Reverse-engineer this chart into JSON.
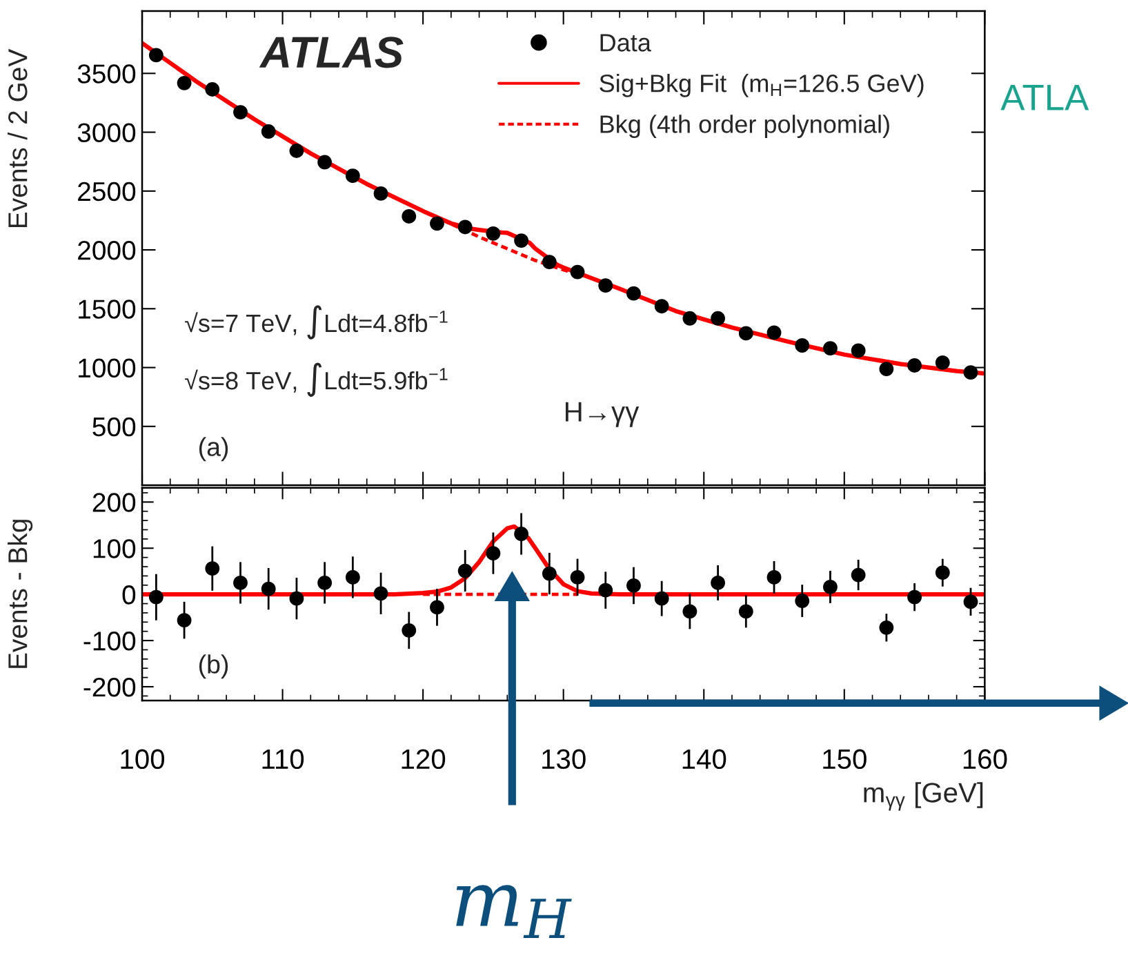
{
  "chart_data": [
    {
      "type": "scatter",
      "ylabel": "Events / 2 GeV",
      "xlim": [
        100,
        160
      ],
      "xticks": [
        100,
        110,
        120,
        130,
        140,
        150,
        160
      ],
      "ylim": [
        0,
        4030
      ],
      "yticks": [
        500,
        1000,
        1500,
        2000,
        2500,
        3000,
        3500
      ],
      "tick_labels": "y",
      "legend": "top right",
      "grid": false,
      "x": [
        101,
        103,
        105,
        107,
        109,
        111,
        113,
        115,
        117,
        119,
        121,
        123,
        125,
        127,
        129,
        131,
        133,
        135,
        137,
        139,
        141,
        143,
        145,
        147,
        149,
        151,
        153,
        155,
        157,
        159
      ],
      "series": [
        {
          "name": "Data",
          "type": "scatter",
          "marker": "circle",
          "color": "#000000",
          "values": [
            3655,
            3418,
            3364,
            3170,
            3006,
            2842,
            2745,
            2630,
            2479,
            2285,
            2224,
            2194,
            2139,
            2079,
            1897,
            1812,
            1697,
            1630,
            1521,
            1418,
            1418,
            1291,
            1297,
            1188,
            1164,
            1145,
            988,
            1018,
            1042,
            958
          ]
        },
        {
          "name": "Sig+Bkg Fit  (m$_{H}$=126.5 GeV)",
          "type": "line",
          "line_style": "solid",
          "marker": "none",
          "color": "#ff0000",
          "x": [
            100,
            104,
            108,
            112,
            116,
            120,
            122,
            123.5,
            124,
            125.6,
            126,
            127.6,
            128,
            129.6,
            130,
            134,
            138,
            142,
            146,
            150,
            154,
            158,
            160
          ],
          "values": [
            3757,
            3420,
            3110,
            2820,
            2560,
            2330,
            2225,
            2178,
            2170,
            2148,
            2145,
            2060,
            2010,
            1870,
            1850,
            1670,
            1480,
            1340,
            1220,
            1110,
            1030,
            970,
            950
          ]
        },
        {
          "name": "Bkg (4th order polynomial)",
          "type": "line",
          "line_style": "dashed",
          "marker": "none",
          "color": "#ff0000",
          "x": [
            120,
            122,
            124,
            126,
            128,
            130,
            130.4
          ],
          "values": [
            2330,
            2220,
            2110,
            2010,
            1910,
            1830,
            1815
          ]
        }
      ],
      "annotations": [
        "ATLAS",
        "√s=7 TeV, ∫Ldt=4.8fb$^{−1}$",
        "√s=8 TeV, ∫Ldt=5.9fb$^{−1}$",
        "H→γγ",
        "(a)"
      ]
    },
    {
      "type": "scatter",
      "ylabel": "Events - Bkg",
      "xlabel": "m$_{γγ}$ [GeV]",
      "xlim": [
        100,
        160
      ],
      "xticks": [
        100,
        110,
        120,
        130,
        140,
        150,
        160
      ],
      "ylim": [
        -230,
        231
      ],
      "yticks": [
        {
          "value": -200,
          "label": "-200"
        },
        {
          "value": -100,
          "label": "-100"
        },
        0,
        100,
        200
      ],
      "legend": false,
      "grid": false,
      "x": [
        101,
        103,
        105,
        107,
        109,
        111,
        113,
        115,
        117,
        119,
        121,
        123,
        125,
        127,
        129,
        131,
        133,
        135,
        137,
        139,
        141,
        143,
        145,
        147,
        149,
        151,
        153,
        155,
        157,
        159
      ],
      "series": [
        {
          "type": "scatter",
          "marker": "circle",
          "color": "#000000",
          "values": [
            -6,
            -56,
            56,
            25,
            12,
            -9,
            25,
            37,
            2,
            -78,
            -28,
            51,
            89,
            131,
            45,
            37,
            9,
            19,
            -9,
            -37,
            25,
            -37,
            37,
            -14,
            16,
            42,
            -72,
            -6,
            47,
            -16
          ],
          "errors": [
            50,
            40,
            48,
            45,
            45,
            45,
            45,
            45,
            45,
            40,
            40,
            45,
            45,
            45,
            45,
            40,
            40,
            40,
            38,
            38,
            38,
            35,
            35,
            35,
            35,
            33,
            30,
            30,
            30,
            30
          ]
        },
        {
          "type": "line",
          "line_style": "solid",
          "marker": "none",
          "color": "#ff0000",
          "x": [
            100,
            118,
            120,
            121,
            122,
            123,
            124,
            125,
            126,
            126.5,
            127.5,
            128,
            129,
            130,
            131,
            132,
            134,
            160
          ],
          "values": [
            0,
            0,
            3,
            6,
            15,
            35,
            70,
            115,
            143,
            147,
            122,
            100,
            55,
            22,
            7,
            2,
            0,
            0
          ]
        },
        {
          "type": "line",
          "line_style": "dashed",
          "marker": "none",
          "color": "#ff0000",
          "x": [
            120,
            131
          ],
          "values": [
            0,
            0
          ]
        }
      ],
      "annotations": [
        "(b)",
        "m$_{H}$",
        "ATLA"
      ]
    }
  ]
}
